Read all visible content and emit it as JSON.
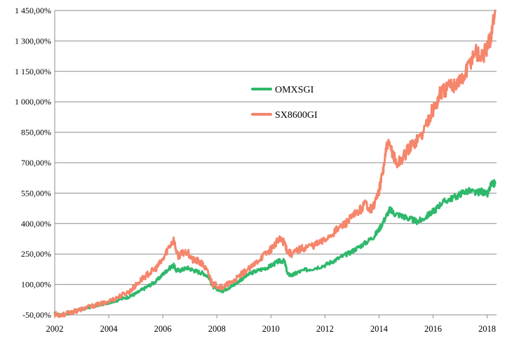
{
  "chart_data": {
    "type": "line",
    "title": "",
    "xlabel": "",
    "ylabel": "",
    "x_range": [
      2002.0,
      2018.35
    ],
    "ylim": [
      -50,
      1450
    ],
    "grid": "horizontal",
    "legend_position": "center",
    "y_ticks": [
      {
        "value": -50,
        "label": "-50,00%"
      },
      {
        "value": 100,
        "label": "100,00%"
      },
      {
        "value": 250,
        "label": "250,00%"
      },
      {
        "value": 400,
        "label": "400,00%"
      },
      {
        "value": 550,
        "label": "550,00%"
      },
      {
        "value": 700,
        "label": "700,00%"
      },
      {
        "value": 850,
        "label": "850,00%"
      },
      {
        "value": 1000,
        "label": "1 000,00%"
      },
      {
        "value": 1150,
        "label": "1 150,00%"
      },
      {
        "value": 1300,
        "label": "1 300,00%"
      },
      {
        "value": 1450,
        "label": "1 450,00%"
      }
    ],
    "x_ticks": [
      {
        "value": 2002,
        "label": "2002"
      },
      {
        "value": 2004,
        "label": "2004"
      },
      {
        "value": 2006,
        "label": "2006"
      },
      {
        "value": 2008,
        "label": "2008"
      },
      {
        "value": 2010,
        "label": "2010"
      },
      {
        "value": 2012,
        "label": "2012"
      },
      {
        "value": 2014,
        "label": "2014"
      },
      {
        "value": 2016,
        "label": "2016"
      },
      {
        "value": 2018,
        "label": "2018"
      }
    ],
    "series": [
      {
        "name": "OMXSGI",
        "color": "#2eb86b",
        "points": [
          [
            2002.0,
            -45
          ],
          [
            2002.15,
            -50
          ],
          [
            2002.35,
            -48
          ],
          [
            2002.6,
            -38
          ],
          [
            2002.8,
            -30
          ],
          [
            2003.0,
            -22
          ],
          [
            2003.3,
            -12
          ],
          [
            2003.6,
            -2
          ],
          [
            2003.9,
            8
          ],
          [
            2004.2,
            18
          ],
          [
            2004.5,
            30
          ],
          [
            2004.8,
            42
          ],
          [
            2005.0,
            55
          ],
          [
            2005.25,
            75
          ],
          [
            2005.5,
            95
          ],
          [
            2005.75,
            115
          ],
          [
            2006.0,
            150
          ],
          [
            2006.2,
            175
          ],
          [
            2006.4,
            195
          ],
          [
            2006.5,
            168
          ],
          [
            2006.7,
            172
          ],
          [
            2006.9,
            182
          ],
          [
            2007.1,
            172
          ],
          [
            2007.3,
            162
          ],
          [
            2007.5,
            155
          ],
          [
            2007.7,
            138
          ],
          [
            2007.85,
            88
          ],
          [
            2008.0,
            78
          ],
          [
            2008.2,
            68
          ],
          [
            2008.4,
            82
          ],
          [
            2008.6,
            95
          ],
          [
            2008.8,
            115
          ],
          [
            2009.0,
            135
          ],
          [
            2009.3,
            158
          ],
          [
            2009.6,
            172
          ],
          [
            2009.9,
            185
          ],
          [
            2010.1,
            200
          ],
          [
            2010.3,
            215
          ],
          [
            2010.5,
            215
          ],
          [
            2010.62,
            150
          ],
          [
            2010.8,
            145
          ],
          [
            2011.0,
            160
          ],
          [
            2011.3,
            172
          ],
          [
            2011.6,
            180
          ],
          [
            2012.0,
            195
          ],
          [
            2012.3,
            215
          ],
          [
            2012.6,
            235
          ],
          [
            2012.9,
            255
          ],
          [
            2013.2,
            280
          ],
          [
            2013.5,
            305
          ],
          [
            2013.8,
            335
          ],
          [
            2014.0,
            370
          ],
          [
            2014.2,
            420
          ],
          [
            2014.4,
            470
          ],
          [
            2014.55,
            450
          ],
          [
            2014.8,
            440
          ],
          [
            2015.0,
            430
          ],
          [
            2015.2,
            420
          ],
          [
            2015.4,
            410
          ],
          [
            2015.6,
            420
          ],
          [
            2015.9,
            450
          ],
          [
            2016.1,
            470
          ],
          [
            2016.3,
            500
          ],
          [
            2016.6,
            520
          ],
          [
            2016.9,
            535
          ],
          [
            2017.1,
            555
          ],
          [
            2017.35,
            560
          ],
          [
            2017.6,
            550
          ],
          [
            2017.8,
            560
          ],
          [
            2018.0,
            540
          ],
          [
            2018.15,
            590
          ],
          [
            2018.3,
            600
          ]
        ]
      },
      {
        "name": "SX8600GI",
        "color": "#f5856b",
        "points": [
          [
            2002.0,
            -45
          ],
          [
            2002.15,
            -50
          ],
          [
            2002.35,
            -48
          ],
          [
            2002.6,
            -38
          ],
          [
            2002.8,
            -30
          ],
          [
            2003.0,
            -22
          ],
          [
            2003.3,
            -10
          ],
          [
            2003.6,
            0
          ],
          [
            2003.9,
            12
          ],
          [
            2004.2,
            28
          ],
          [
            2004.5,
            48
          ],
          [
            2004.8,
            68
          ],
          [
            2005.0,
            95
          ],
          [
            2005.25,
            130
          ],
          [
            2005.5,
            155
          ],
          [
            2005.75,
            180
          ],
          [
            2006.0,
            220
          ],
          [
            2006.2,
            280
          ],
          [
            2006.4,
            320
          ],
          [
            2006.55,
            240
          ],
          [
            2006.7,
            250
          ],
          [
            2006.9,
            265
          ],
          [
            2007.1,
            220
          ],
          [
            2007.3,
            215
          ],
          [
            2007.5,
            195
          ],
          [
            2007.7,
            150
          ],
          [
            2007.85,
            100
          ],
          [
            2008.0,
            95
          ],
          [
            2008.2,
            85
          ],
          [
            2008.4,
            100
          ],
          [
            2008.6,
            115
          ],
          [
            2008.8,
            135
          ],
          [
            2009.0,
            160
          ],
          [
            2009.3,
            185
          ],
          [
            2009.6,
            230
          ],
          [
            2009.9,
            260
          ],
          [
            2010.1,
            290
          ],
          [
            2010.3,
            320
          ],
          [
            2010.5,
            310
          ],
          [
            2010.62,
            260
          ],
          [
            2010.8,
            250
          ],
          [
            2011.0,
            270
          ],
          [
            2011.3,
            285
          ],
          [
            2011.6,
            295
          ],
          [
            2011.9,
            310
          ],
          [
            2012.2,
            345
          ],
          [
            2012.5,
            375
          ],
          [
            2012.8,
            405
          ],
          [
            2013.0,
            430
          ],
          [
            2013.25,
            460
          ],
          [
            2013.5,
            500
          ],
          [
            2013.75,
            470
          ],
          [
            2014.0,
            560
          ],
          [
            2014.15,
            660
          ],
          [
            2014.3,
            790
          ],
          [
            2014.5,
            755
          ],
          [
            2014.65,
            690
          ],
          [
            2014.85,
            720
          ],
          [
            2015.05,
            760
          ],
          [
            2015.3,
            800
          ],
          [
            2015.6,
            840
          ],
          [
            2015.9,
            940
          ],
          [
            2016.1,
            980
          ],
          [
            2016.25,
            1040
          ],
          [
            2016.45,
            1060
          ],
          [
            2016.7,
            1080
          ],
          [
            2016.9,
            1100
          ],
          [
            2017.1,
            1110
          ],
          [
            2017.35,
            1190
          ],
          [
            2017.55,
            1250
          ],
          [
            2017.8,
            1220
          ],
          [
            2018.0,
            1260
          ],
          [
            2018.15,
            1330
          ],
          [
            2018.3,
            1450
          ]
        ]
      }
    ]
  }
}
